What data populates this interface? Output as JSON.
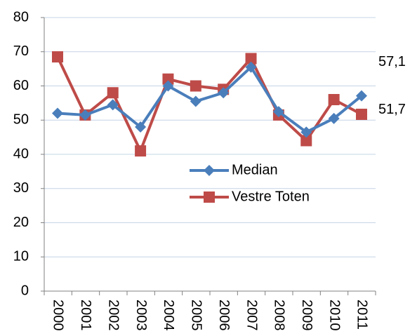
{
  "chart_data": {
    "type": "line",
    "categories": [
      "2000",
      "2001",
      "2002",
      "2003",
      "2004",
      "2005",
      "2006",
      "2007",
      "2008",
      "2009",
      "2010",
      "2011"
    ],
    "series": [
      {
        "name": "Median",
        "color": "#4a7ebb",
        "marker": "diamond",
        "values": [
          52,
          51.5,
          54.5,
          48,
          60,
          55.5,
          58,
          65.5,
          52.5,
          46.5,
          50.5,
          57.1
        ],
        "value_labels": [
          null,
          null,
          null,
          null,
          null,
          null,
          null,
          null,
          null,
          null,
          null,
          "57,1"
        ]
      },
      {
        "name": "Vestre Toten",
        "color": "#be4b48",
        "marker": "square",
        "values": [
          68.5,
          51.5,
          58,
          41,
          62,
          60,
          59,
          68,
          51.5,
          44,
          56,
          51.7
        ],
        "value_labels": [
          null,
          null,
          null,
          null,
          null,
          null,
          null,
          null,
          null,
          null,
          null,
          "51,7"
        ]
      }
    ],
    "ylim": [
      0,
      80
    ],
    "yticks": [
      0,
      10,
      20,
      30,
      40,
      50,
      60,
      70,
      80
    ],
    "grid": true,
    "legend": "center"
  }
}
